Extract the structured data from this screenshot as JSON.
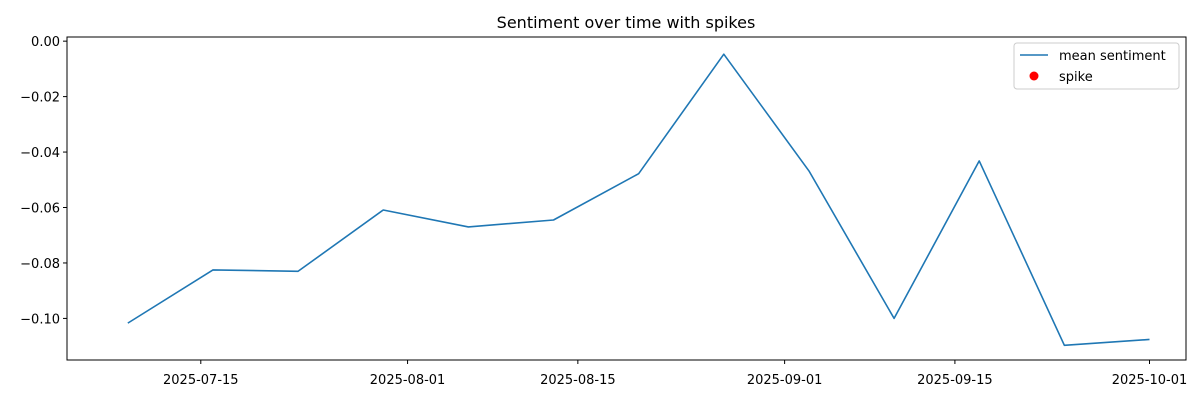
{
  "chart_data": {
    "type": "line",
    "title": "Sentiment over time with spikes",
    "xlabel": "",
    "ylabel": "",
    "x_axis_type": "date",
    "xlim": [
      "2025-07-04",
      "2025-10-04"
    ],
    "ylim": [
      -0.115,
      0.0015
    ],
    "x_ticks": [
      "2025-07-15",
      "2025-08-01",
      "2025-08-15",
      "2025-09-01",
      "2025-09-15",
      "2025-10-01"
    ],
    "y_ticks": [
      0.0,
      -0.02,
      -0.04,
      -0.06,
      -0.08,
      -0.1
    ],
    "y_tick_labels": [
      "0.00",
      "−0.02",
      "−0.04",
      "−0.06",
      "−0.08",
      "−0.10"
    ],
    "grid": false,
    "legend_position": "top-right",
    "series": [
      {
        "name": "mean sentiment",
        "kind": "line",
        "color": "#1f77b4",
        "points": [
          {
            "x": "2025-07-09",
            "y": -0.1017
          },
          {
            "x": "2025-07-16",
            "y": -0.0825
          },
          {
            "x": "2025-07-23",
            "y": -0.083
          },
          {
            "x": "2025-07-30",
            "y": -0.0609
          },
          {
            "x": "2025-08-06",
            "y": -0.067
          },
          {
            "x": "2025-08-13",
            "y": -0.0645
          },
          {
            "x": "2025-08-20",
            "y": -0.0478
          },
          {
            "x": "2025-08-27",
            "y": -0.0047
          },
          {
            "x": "2025-09-03",
            "y": -0.0468
          },
          {
            "x": "2025-09-10",
            "y": -0.1
          },
          {
            "x": "2025-09-17",
            "y": -0.0432
          },
          {
            "x": "2025-09-24",
            "y": -0.1097
          },
          {
            "x": "2025-10-01",
            "y": -0.1076
          }
        ]
      },
      {
        "name": "spike",
        "kind": "scatter",
        "color": "#ff0000",
        "points": []
      }
    ]
  }
}
